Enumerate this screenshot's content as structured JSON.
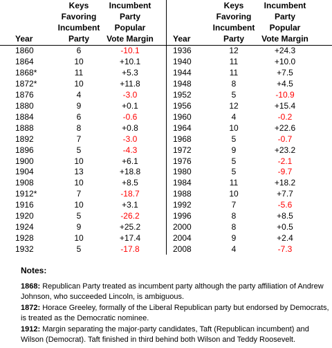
{
  "table": {
    "headers": {
      "year": "Year",
      "keys": [
        "Keys",
        "Favoring",
        "Incumbent",
        "Party"
      ],
      "margin": [
        "Incumbent",
        "Party",
        "Popular",
        "Vote Margin"
      ]
    },
    "left_rows": [
      [
        "1860",
        6,
        "-10.1"
      ],
      [
        "1864",
        10,
        "+10.1"
      ],
      [
        "1868*",
        11,
        "+5.3"
      ],
      [
        "1872*",
        10,
        "+11.8"
      ],
      [
        "1876",
        4,
        "-3.0"
      ],
      [
        "1880",
        9,
        "+0.1"
      ],
      [
        "1884",
        6,
        "-0.6"
      ],
      [
        "1888",
        8,
        "+0.8"
      ],
      [
        "1892",
        7,
        "-3.0"
      ],
      [
        "1896",
        5,
        "-4.3"
      ],
      [
        "1900",
        10,
        "+6.1"
      ],
      [
        "1904",
        13,
        "+18.8"
      ],
      [
        "1908",
        10,
        "+8.5"
      ],
      [
        "1912*",
        7,
        "-18.7"
      ],
      [
        "1916",
        10,
        "+3.1"
      ],
      [
        "1920",
        5,
        "-26.2"
      ],
      [
        "1924",
        9,
        "+25.2"
      ],
      [
        "1928",
        10,
        "+17.4"
      ],
      [
        "1932",
        5,
        "-17.8"
      ]
    ],
    "right_rows": [
      [
        "1936",
        12,
        "+24.3"
      ],
      [
        "1940",
        11,
        "+10.0"
      ],
      [
        "1944",
        11,
        "+7.5"
      ],
      [
        "1948",
        8,
        "+4.5"
      ],
      [
        "1952",
        5,
        "-10.9"
      ],
      [
        "1956",
        12,
        "+15.4"
      ],
      [
        "1960",
        4,
        "-0.2"
      ],
      [
        "1964",
        10,
        "+22.6"
      ],
      [
        "1968",
        5,
        "-0.7"
      ],
      [
        "1972",
        9,
        "+23.2"
      ],
      [
        "1976",
        5,
        "-2.1"
      ],
      [
        "1980",
        5,
        "-9.7"
      ],
      [
        "1984",
        11,
        "+18.2"
      ],
      [
        "1988",
        10,
        "+7.7"
      ],
      [
        "1992",
        7,
        "-5.6"
      ],
      [
        "1996",
        8,
        "+8.5"
      ],
      [
        "2000",
        8,
        "+0.5"
      ],
      [
        "2004",
        9,
        "+2.4"
      ],
      [
        "2008",
        4,
        "-7.3"
      ]
    ]
  },
  "notes": {
    "title": "Notes:",
    "items": [
      {
        "label": "1868:",
        "text": "Republican Party treated as incumbent party although the party affiliation of Andrew Johnson, who succeeded Lincoln, is ambiguous."
      },
      {
        "label": "1872:",
        "text": "Horace Greeley, formally of the Liberal Republican party but endorsed by Democrats, is treated as the Democratic nominee."
      },
      {
        "label": "1912:",
        "text": "Margin separating the major-party candidates, Taft (Republican incumbent) and Wilson (Democrat). Taft finished in third behind both Wilson and Teddy Roosevelt."
      }
    ]
  }
}
